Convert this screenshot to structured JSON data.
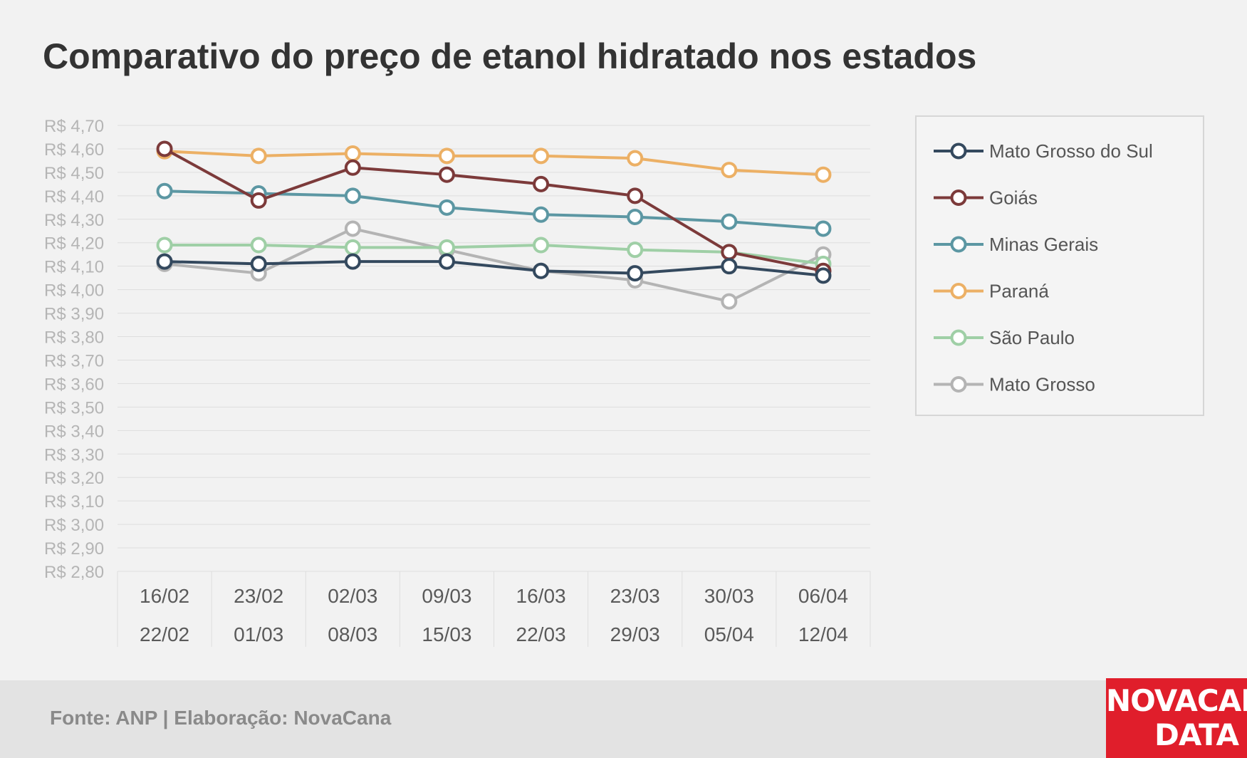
{
  "chart_title": "Comparativo do preço de etanol hidratado nos estados",
  "footer": {
    "source": "Fonte: ANP | Elaboração: NovaCana"
  },
  "logo": {
    "line1": "NOVACANA",
    "line2": "DATA",
    "color": "#e01e2b"
  },
  "chart_data": {
    "type": "line",
    "title": "Comparativo do preço de etanol hidratado nos estados",
    "xlabel": "",
    "ylabel": "",
    "ylim": [
      2.8,
      4.7
    ],
    "y_tick_labels": [
      "R$ 4,70",
      "R$ 4,60",
      "R$ 4,50",
      "R$ 4,40",
      "R$ 4,30",
      "R$ 4,20",
      "R$ 4,10",
      "R$ 4,00",
      "R$ 3,90",
      "R$ 3,80",
      "R$ 3,70",
      "R$ 3,60",
      "R$ 3,50",
      "R$ 3,40",
      "R$ 3,30",
      "R$ 3,20",
      "R$ 3,10",
      "R$ 3,00",
      "R$ 2,90",
      "R$ 2,80"
    ],
    "y_ticks": [
      4.7,
      4.6,
      4.5,
      4.4,
      4.3,
      4.2,
      4.1,
      4.0,
      3.9,
      3.8,
      3.7,
      3.6,
      3.5,
      3.4,
      3.3,
      3.2,
      3.1,
      3.0,
      2.9,
      2.8
    ],
    "categories": [
      {
        "start": "16/02",
        "end": "22/02"
      },
      {
        "start": "23/02",
        "end": "01/03"
      },
      {
        "start": "02/03",
        "end": "08/03"
      },
      {
        "start": "09/03",
        "end": "15/03"
      },
      {
        "start": "16/03",
        "end": "22/03"
      },
      {
        "start": "23/03",
        "end": "29/03"
      },
      {
        "start": "30/03",
        "end": "05/04"
      },
      {
        "start": "06/04",
        "end": "12/04"
      }
    ],
    "grid": true,
    "legend_position": "right",
    "series": [
      {
        "name": "Mato Grosso",
        "color": "#b4b4b4",
        "values": [
          4.11,
          4.07,
          4.26,
          4.17,
          4.08,
          4.04,
          3.95,
          4.15
        ]
      },
      {
        "name": "São Paulo",
        "color": "#9fcfa6",
        "values": [
          4.19,
          4.19,
          4.18,
          4.18,
          4.19,
          4.17,
          4.16,
          4.11
        ]
      },
      {
        "name": "Paraná",
        "color": "#ecb065",
        "values": [
          4.59,
          4.57,
          4.58,
          4.57,
          4.57,
          4.56,
          4.51,
          4.49
        ]
      },
      {
        "name": "Minas Gerais",
        "color": "#5c97a3",
        "values": [
          4.42,
          4.41,
          4.4,
          4.35,
          4.32,
          4.31,
          4.29,
          4.26
        ]
      },
      {
        "name": "Goiás",
        "color": "#7c3a3a",
        "values": [
          4.6,
          4.38,
          4.52,
          4.49,
          4.45,
          4.4,
          4.16,
          4.08
        ]
      },
      {
        "name": "Mato Grosso do Sul",
        "color": "#34495e",
        "values": [
          4.12,
          4.11,
          4.12,
          4.12,
          4.08,
          4.07,
          4.1,
          4.06
        ]
      }
    ],
    "legend_order": [
      "Mato Grosso do Sul",
      "Goiás",
      "Minas Gerais",
      "Paraná",
      "São Paulo",
      "Mato Grosso"
    ]
  }
}
